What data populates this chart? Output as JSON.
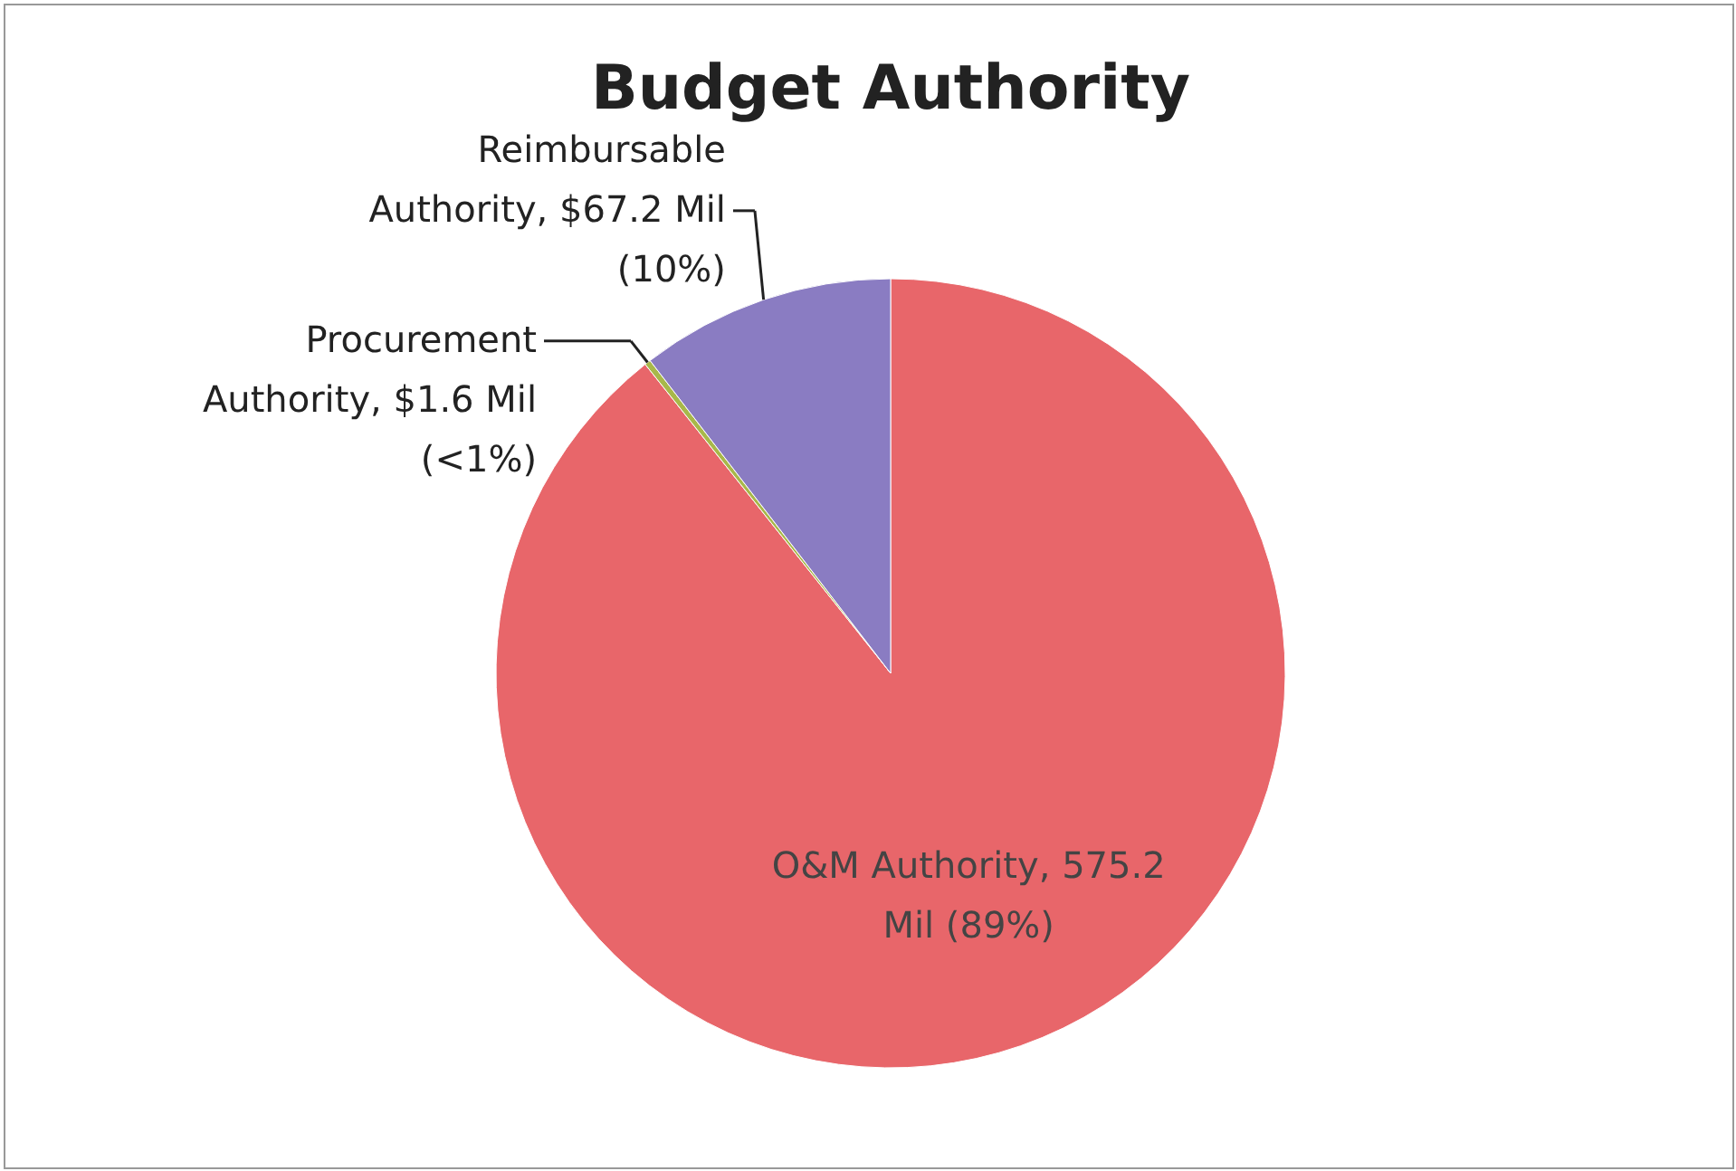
{
  "chart_data": {
    "type": "pie",
    "title": "Budget Authority",
    "categories": [
      "O&M Authority",
      "Procurement Authority",
      "Reimbursable Authority"
    ],
    "values": [
      575.2,
      1.6,
      67.2
    ],
    "value_labels": [
      "575.2 Mil (89%)",
      "$1.6 Mil (<1%)",
      "$67.2 Mil (10%)"
    ],
    "colors": [
      "#e8666a",
      "#a8b84a",
      "#8a7cc2"
    ]
  }
}
